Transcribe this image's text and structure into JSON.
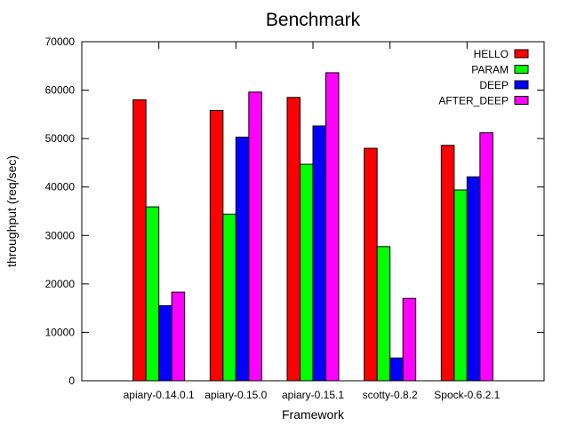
{
  "chart_data": {
    "type": "bar",
    "title": "Benchmark",
    "xlabel": "Framework",
    "ylabel": "throughput (req/sec)",
    "ylim": [
      0,
      70000
    ],
    "yticks": [
      "0",
      "10000",
      "20000",
      "30000",
      "40000",
      "50000",
      "60000",
      "70000"
    ],
    "categories": [
      "apiary-0.14.0.1",
      "apiary-0.15.0",
      "apiary-0.15.1",
      "scotty-0.8.2",
      "Spock-0.6.2.1"
    ],
    "grid": false,
    "legend_position": "top-right",
    "series": [
      {
        "name": "HELLO",
        "color": "#ff0000",
        "values": [
          58000,
          55800,
          58500,
          48000,
          48600
        ]
      },
      {
        "name": "PARAM",
        "color": "#00ff00",
        "values": [
          35900,
          34400,
          44700,
          27700,
          39400
        ]
      },
      {
        "name": "DEEP",
        "color": "#0000ff",
        "values": [
          15500,
          50300,
          52600,
          4700,
          42100
        ]
      },
      {
        "name": "AFTER_DEEP",
        "color": "#ff00ff",
        "values": [
          18300,
          59600,
          63600,
          17000,
          51200
        ]
      }
    ]
  }
}
